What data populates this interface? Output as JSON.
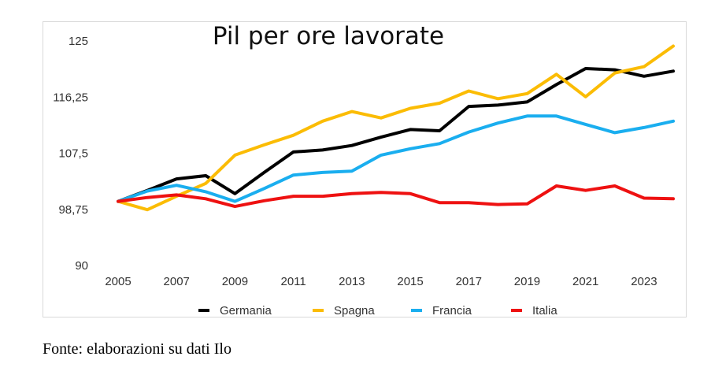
{
  "chart_data": {
    "type": "line",
    "title": "Pil per ore lavorate",
    "xlabel": "",
    "ylabel": "",
    "x": [
      2005,
      2006,
      2007,
      2008,
      2009,
      2010,
      2011,
      2012,
      2013,
      2014,
      2015,
      2016,
      2017,
      2018,
      2019,
      2020,
      2021,
      2022,
      2023,
      2024
    ],
    "x_tick_labels": [
      "2005",
      "2007",
      "2009",
      "2011",
      "2013",
      "2015",
      "2017",
      "2019",
      "2021",
      "2023"
    ],
    "y_tick_labels": [
      "90",
      "98,75",
      "107,5",
      "116,25",
      "125"
    ],
    "y_ticks": [
      90,
      98.75,
      107.5,
      116.25,
      125
    ],
    "xlim": [
      2005,
      2024
    ],
    "ylim": [
      90,
      125
    ],
    "grid": false,
    "legend_position": "bottom",
    "series": [
      {
        "name": "Germania",
        "color": "#000000",
        "values": [
          100,
          101.7,
          103.5,
          104,
          101.2,
          104.5,
          107.7,
          108,
          108.7,
          110,
          111.2,
          111,
          114.8,
          115,
          115.5,
          118.2,
          120.7,
          120.5,
          119.5,
          120.3
        ]
      },
      {
        "name": "Spagna",
        "color": "#fbbc04",
        "values": [
          100,
          98.7,
          100.8,
          102.8,
          107.2,
          108.8,
          110.3,
          112.5,
          114,
          113,
          114.5,
          115.3,
          117.2,
          116,
          116.8,
          119.8,
          116.3,
          120,
          121,
          124.2
        ]
      },
      {
        "name": "Francia",
        "color": "#1aaeef",
        "values": [
          100,
          101.6,
          102.5,
          101.5,
          100,
          102,
          104.1,
          104.5,
          104.7,
          107.2,
          108.2,
          109,
          110.8,
          112.2,
          113.3,
          113.3,
          112,
          110.7,
          111.5,
          112.5
        ]
      },
      {
        "name": "Italia",
        "color": "#ee1111",
        "values": [
          100,
          100.6,
          101,
          100.4,
          99.2,
          100.1,
          100.8,
          100.8,
          101.2,
          101.4,
          101.2,
          99.8,
          99.8,
          99.5,
          99.6,
          102.4,
          101.7,
          102.4,
          100.5,
          100.4
        ]
      }
    ]
  },
  "source_note": "Fonte: elaborazioni su dati Ilo"
}
